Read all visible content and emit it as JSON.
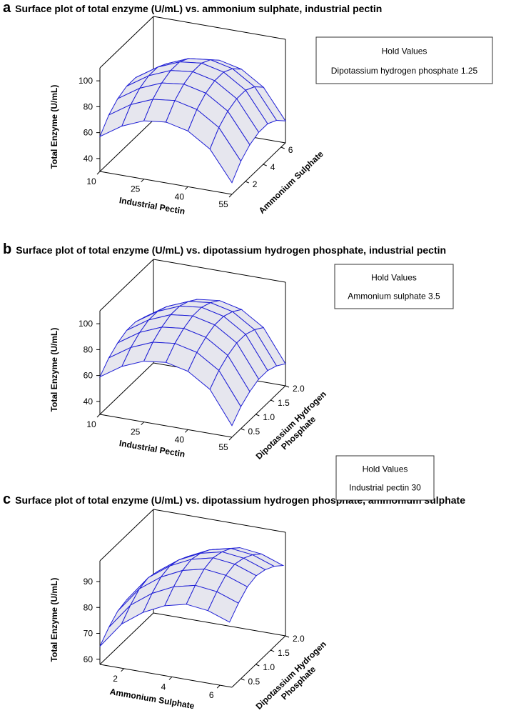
{
  "chart_data": [
    {
      "type": "surface",
      "panel": "a",
      "title": "Surface plot of total enzyme (U/mL) vs. ammonium sulphate, industrial pectin",
      "x_label": "Industrial Pectin",
      "y_label": [
        "Ammonium Sulphate"
      ],
      "z_label": "Total Enzyme (U/mL)",
      "hold_title": "Hold Values",
      "hold_text": "Dipotassium hydrogen phosphate 1.25",
      "color": "#1f1fd6",
      "fill": "#e6e6ee",
      "x": [
        10,
        17.5,
        25,
        32.5,
        40,
        47.5,
        55
      ],
      "y": [
        0.5,
        1.5,
        2.5,
        3.5,
        4.5,
        5.5,
        6.5
      ],
      "xlim": [
        10,
        55
      ],
      "xticks": [
        10,
        25,
        40,
        55
      ],
      "ylim": [
        0.5,
        6.5
      ],
      "yticks": [
        2,
        4,
        6
      ],
      "zlim": [
        30,
        110
      ],
      "zticks": [
        40,
        60,
        80,
        100
      ],
      "z": [
        [
          57,
          68,
          75,
          77,
          73,
          62,
          39
        ],
        [
          67,
          78,
          85,
          87,
          83,
          72,
          49
        ],
        [
          73,
          84,
          91,
          93,
          89,
          78,
          55
        ],
        [
          76,
          87,
          94,
          96,
          92,
          81,
          58
        ],
        [
          76,
          87,
          94,
          96,
          92,
          81,
          58
        ],
        [
          72,
          83,
          90,
          92,
          88,
          77,
          54
        ],
        [
          65,
          76,
          83,
          85,
          81,
          70,
          47
        ]
      ]
    },
    {
      "type": "surface",
      "panel": "b",
      "title": "Surface plot of total enzyme (U/mL) vs. dipotassium hydrogen phosphate, industrial pectin",
      "x_label": "Industrial Pectin",
      "y_label": [
        "Dipotassium Hydrogen",
        "Phosphate"
      ],
      "z_label": "Total Enzyme (U/mL)",
      "hold_title": "Hold Values",
      "hold_text": "Ammonium sulphate 3.5",
      "color": "#1f1fd6",
      "fill": "#e6e6ee",
      "x": [
        10,
        17.5,
        25,
        32.5,
        40,
        47.5,
        55
      ],
      "y": [
        0.2,
        0.5,
        0.8,
        1.1,
        1.4,
        1.7,
        2.0
      ],
      "xlim": [
        10,
        55
      ],
      "xticks": [
        10,
        25,
        40,
        55
      ],
      "ylim": [
        0.2,
        2.0
      ],
      "yticks": [
        0.5,
        {
          "value": 1.0,
          "label": "1.0"
        },
        1.5,
        {
          "value": 2.0,
          "label": "2.0"
        }
      ],
      "zlim": [
        30,
        110
      ],
      "zticks": [
        40,
        60,
        80,
        100
      ],
      "z": [
        [
          59,
          70,
          77,
          79,
          75,
          64,
          39
        ],
        [
          67,
          78,
          85,
          87,
          83,
          72,
          47
        ],
        [
          72,
          83,
          90,
          92,
          88,
          77,
          52
        ],
        [
          75,
          86,
          93,
          95,
          91,
          80,
          55
        ],
        [
          75,
          86,
          93,
          95,
          91,
          80,
          55
        ],
        [
          72,
          83,
          90,
          92,
          88,
          77,
          52
        ],
        [
          67,
          78,
          85,
          87,
          83,
          72,
          47
        ]
      ]
    },
    {
      "type": "surface",
      "panel": "c",
      "title": "Surface plot of total enzyme (U/mL) vs. dipotassium hydrogen phosphate, ammonium sulphate",
      "x_label": "Ammonium Sulphate",
      "y_label": [
        "Dipotassium Hydrogen",
        "Phosphate"
      ],
      "z_label": "Total Enzyme (U/mL)",
      "hold_title": "Hold Values",
      "hold_text": "Industrial pectin 30",
      "color": "#1f1fd6",
      "fill": "#e6e6ee",
      "x": [
        1,
        1.9,
        2.8,
        3.7,
        4.6,
        5.5,
        6.4
      ],
      "y": [
        0.2,
        0.5,
        0.8,
        1.1,
        1.4,
        1.7,
        2.0
      ],
      "xlim": [
        1,
        6.5
      ],
      "xticks": [
        2,
        4,
        6
      ],
      "ylim": [
        0.2,
        2.0
      ],
      "yticks": [
        0.5,
        {
          "value": 1.0,
          "label": "1.0"
        },
        1.5,
        {
          "value": 2.0,
          "label": "2.0"
        }
      ],
      "zlim": [
        58,
        98
      ],
      "zticks": [
        60,
        70,
        80,
        90
      ],
      "z": [
        [
          65,
          75,
          81,
          85,
          87,
          86,
          83
        ],
        [
          69,
          79,
          85,
          89,
          91,
          90,
          87
        ],
        [
          72,
          82,
          88,
          92,
          94,
          93,
          90
        ],
        [
          73,
          83,
          89,
          93,
          95,
          94,
          91
        ],
        [
          72,
          82,
          88,
          92,
          94,
          93,
          90
        ],
        [
          70,
          80,
          86,
          90,
          92,
          91,
          88
        ],
        [
          67,
          77,
          83,
          87,
          89,
          88,
          85
        ]
      ]
    }
  ]
}
